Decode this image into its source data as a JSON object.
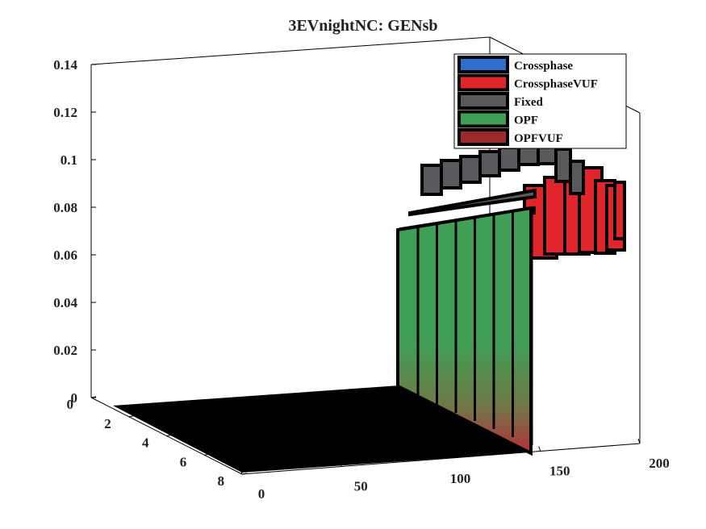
{
  "chart_data": {
    "type": "3d-surface",
    "title": "3EVnightNC: GENsb",
    "xlabel": "",
    "ylabel": "",
    "zlabel": "",
    "x_ticks": [
      "0",
      "50",
      "100",
      "150",
      "200"
    ],
    "y_ticks": [
      "0",
      "2",
      "4",
      "6",
      "8"
    ],
    "z_ticks": [
      "0",
      "0.02",
      "0.04",
      "0.06",
      "0.08",
      "0.1",
      "0.12",
      "0.14"
    ],
    "xlim": [
      0,
      200
    ],
    "ylim": [
      0,
      8
    ],
    "zlim": [
      0,
      0.14
    ],
    "grid": false,
    "legend_position": "top-right",
    "series": [
      {
        "name": "Crossphase",
        "color": "#2f6fd0"
      },
      {
        "name": "CrossphaseVUF",
        "color": "#e0262b"
      },
      {
        "name": "Fixed",
        "color": "#5a5a5e"
      },
      {
        "name": "OPF",
        "color": "#3f9f55"
      },
      {
        "name": "OPFVUF",
        "color": "#9c2a2a"
      }
    ],
    "surface_summary": {
      "zero_region_x": [
        0,
        130
      ],
      "nonzero_region_x": [
        130,
        200
      ],
      "OPF_level_approx": 0.072,
      "Fixed_level_approx": 0.09,
      "CrossphaseVUF_range_approx": [
        0.06,
        0.08
      ]
    }
  }
}
